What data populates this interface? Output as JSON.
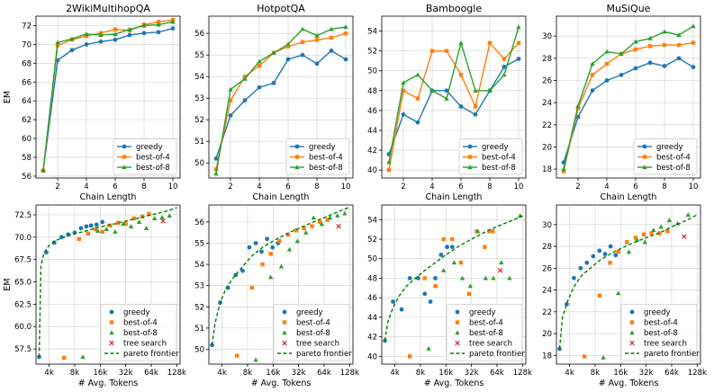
{
  "colors": {
    "greedy": "#1f77b4",
    "best4": "#ff7f0e",
    "best8": "#2ca02c",
    "tree": "#d62728",
    "pareto": "#008000"
  },
  "chart_data": [
    {
      "type": "line",
      "title": "2WikiMultihopQA",
      "xlabel": "Chain Length",
      "ylabel": "EM",
      "xlim": [
        0.5,
        10.5
      ],
      "ylim": [
        55.8,
        73.0
      ],
      "xticks": [
        2,
        4,
        6,
        8,
        10
      ],
      "yticks": [
        56,
        58,
        60,
        62,
        64,
        66,
        68,
        70,
        72
      ],
      "legend": "lower-right",
      "grid": true,
      "x": [
        1,
        2,
        3,
        4,
        5,
        6,
        7,
        8,
        9,
        10
      ],
      "series": [
        {
          "name": "greedy",
          "values": [
            56.6,
            68.3,
            69.4,
            70.0,
            70.3,
            70.5,
            71.0,
            71.2,
            71.3,
            71.7
          ]
        },
        {
          "name": "best-of-4",
          "values": [
            56.6,
            69.9,
            70.5,
            70.9,
            71.2,
            71.6,
            71.5,
            72.1,
            72.4,
            72.6
          ]
        },
        {
          "name": "best-of-8",
          "values": [
            56.6,
            70.2,
            70.6,
            71.1,
            71.0,
            71.1,
            71.6,
            72.0,
            72.1,
            72.4
          ]
        }
      ]
    },
    {
      "type": "line",
      "title": "HotpotQA",
      "xlabel": "Chain Length",
      "ylabel": "",
      "xlim": [
        0.5,
        10.5
      ],
      "ylim": [
        49.3,
        56.8
      ],
      "xticks": [
        2,
        4,
        6,
        8,
        10
      ],
      "yticks": [
        50,
        51,
        52,
        53,
        54,
        55,
        56
      ],
      "legend": "lower-right",
      "grid": true,
      "x": [
        1,
        2,
        3,
        4,
        5,
        6,
        7,
        8,
        9,
        10
      ],
      "series": [
        {
          "name": "greedy",
          "values": [
            50.2,
            52.2,
            52.9,
            53.5,
            53.7,
            54.8,
            55.0,
            54.6,
            55.2,
            54.8
          ]
        },
        {
          "name": "best-of-4",
          "values": [
            49.7,
            52.9,
            54.0,
            54.5,
            55.1,
            55.4,
            55.6,
            55.7,
            55.8,
            56.0
          ]
        },
        {
          "name": "best-of-8",
          "values": [
            49.5,
            53.4,
            53.9,
            54.7,
            55.1,
            55.5,
            56.2,
            55.9,
            56.2,
            56.3
          ]
        }
      ]
    },
    {
      "type": "line",
      "title": "Bamboogle",
      "xlabel": "Chain Length",
      "ylabel": "",
      "xlim": [
        0.5,
        10.5
      ],
      "ylim": [
        39.2,
        55.5
      ],
      "xticks": [
        2,
        4,
        6,
        8,
        10
      ],
      "yticks": [
        40,
        42,
        44,
        46,
        48,
        50,
        52,
        54
      ],
      "legend": "lower-right",
      "grid": true,
      "x": [
        1,
        2,
        3,
        4,
        5,
        6,
        7,
        8,
        9,
        10
      ],
      "series": [
        {
          "name": "greedy",
          "values": [
            41.6,
            45.6,
            44.8,
            48.0,
            48.0,
            46.4,
            45.6,
            48.0,
            50.4,
            51.2
          ]
        },
        {
          "name": "best-of-4",
          "values": [
            40.0,
            48.0,
            47.2,
            52.0,
            52.0,
            49.6,
            46.4,
            52.8,
            51.2,
            52.8
          ]
        },
        {
          "name": "best-of-8",
          "values": [
            40.8,
            48.8,
            49.6,
            48.0,
            47.2,
            52.8,
            48.0,
            48.0,
            49.6,
            54.4
          ]
        }
      ]
    },
    {
      "type": "line",
      "title": "MuSiQue",
      "xlabel": "Chain Length",
      "ylabel": "",
      "xlim": [
        0.5,
        10.5
      ],
      "ylim": [
        17.2,
        31.8
      ],
      "xticks": [
        2,
        4,
        6,
        8,
        10
      ],
      "yticks": [
        18,
        20,
        22,
        24,
        26,
        28,
        30
      ],
      "legend": "lower-right",
      "grid": true,
      "x": [
        1,
        2,
        3,
        4,
        5,
        6,
        7,
        8,
        9,
        10
      ],
      "series": [
        {
          "name": "greedy",
          "values": [
            18.6,
            22.7,
            25.1,
            26.0,
            26.5,
            27.1,
            27.6,
            27.3,
            28.0,
            27.2
          ]
        },
        {
          "name": "best-of-4",
          "values": [
            17.8,
            23.5,
            26.5,
            27.5,
            28.4,
            28.8,
            29.1,
            29.2,
            29.2,
            29.4
          ]
        },
        {
          "name": "best-of-8",
          "values": [
            18.0,
            23.7,
            27.5,
            28.6,
            28.4,
            29.5,
            29.8,
            30.4,
            30.1,
            30.9
          ]
        }
      ]
    },
    {
      "type": "scatter",
      "xlabel": "# Avg. Tokens",
      "ylabel": "EM",
      "xscale": "log2",
      "xlim": [
        2800,
        140000
      ],
      "ylim": [
        55.8,
        73.6
      ],
      "xticks": [
        4000,
        8000,
        16000,
        32000,
        64000,
        128000
      ],
      "xticklabels": [
        "4k",
        "8k",
        "16k",
        "32k",
        "64k",
        "128k"
      ],
      "yticks": [
        57.5,
        60.0,
        62.5,
        65.0,
        67.5,
        70.0,
        72.5
      ],
      "yticklabels": [
        "57.5",
        "60.0",
        "62.5",
        "65.0",
        "67.5",
        "70.0",
        "72.5"
      ],
      "legend": "lower-right",
      "grid": true,
      "series": [
        {
          "name": "greedy",
          "x": [
            3050,
            3700,
            4600,
            5600,
            6700,
            8000,
            9500,
            11000,
            12500,
            14500,
            17000
          ],
          "y": [
            56.6,
            68.3,
            69.4,
            70.0,
            70.3,
            70.5,
            71.0,
            71.2,
            71.3,
            71.4,
            71.7
          ]
        },
        {
          "name": "best-of-4",
          "x": [
            6000,
            9000,
            11500,
            14000,
            17000,
            21000,
            26000,
            32000,
            40000,
            50000,
            60000
          ],
          "y": [
            56.5,
            69.8,
            70.4,
            70.9,
            70.6,
            71.3,
            71.6,
            71.5,
            72.1,
            72.3,
            72.6
          ]
        },
        {
          "name": "best-of-8",
          "x": [
            10000,
            15000,
            19000,
            24000,
            30000,
            37000,
            46000,
            56000,
            70000,
            86000,
            105000
          ],
          "y": [
            56.6,
            70.7,
            70.9,
            70.6,
            71.5,
            71.2,
            71.7,
            71.0,
            72.1,
            72.2,
            72.4
          ]
        },
        {
          "name": "tree search",
          "x": [
            88000
          ],
          "y": [
            71.8
          ]
        },
        {
          "name": "pareto frontier",
          "style": "dashed",
          "x": [
            3050,
            3200,
            3500,
            4000,
            5000,
            6000,
            8000,
            10000,
            14000,
            17000,
            24000,
            32000,
            48000,
            64000,
            96000,
            128000
          ],
          "y": [
            56.6,
            66.8,
            68.3,
            69.1,
            69.7,
            70.0,
            70.4,
            70.6,
            71.0,
            71.2,
            71.5,
            71.8,
            72.2,
            72.5,
            72.9,
            73.3
          ]
        }
      ]
    },
    {
      "type": "scatter",
      "xlabel": "# Avg. Tokens",
      "ylabel": "",
      "xscale": "log2",
      "xlim": [
        2800,
        140000
      ],
      "ylim": [
        49.3,
        56.8
      ],
      "xticks": [
        4000,
        8000,
        16000,
        32000,
        64000,
        128000
      ],
      "xticklabels": [
        "4k",
        "8k",
        "16k",
        "32k",
        "64k",
        "128k"
      ],
      "yticks": [
        50,
        51,
        52,
        53,
        54,
        55,
        56
      ],
      "legend": "lower-right",
      "grid": true,
      "series": [
        {
          "name": "greedy",
          "x": [
            3050,
            3800,
            4700,
            5800,
            7000,
            8400,
            10000,
            11700,
            13600,
            15800,
            18300
          ],
          "y": [
            50.2,
            52.2,
            52.9,
            53.5,
            53.7,
            54.8,
            55.0,
            54.6,
            55.2,
            54.8,
            55.0
          ]
        },
        {
          "name": "best-of-4",
          "x": [
            6000,
            9000,
            12000,
            15000,
            19000,
            24000,
            30000,
            37000,
            46000,
            57000,
            70000
          ],
          "y": [
            49.7,
            52.9,
            54.0,
            54.5,
            55.1,
            55.4,
            55.6,
            55.7,
            55.8,
            56.0,
            56.1
          ]
        },
        {
          "name": "best-of-8",
          "x": [
            10000,
            15000,
            20000,
            25000,
            31000,
            39000,
            48000,
            60000,
            75000,
            92000,
            112000
          ],
          "y": [
            49.5,
            53.4,
            53.9,
            54.7,
            55.1,
            55.5,
            56.2,
            55.9,
            56.2,
            56.3,
            56.4
          ]
        },
        {
          "name": "tree search",
          "x": [
            95000
          ],
          "y": [
            55.8
          ]
        },
        {
          "name": "pareto frontier",
          "style": "dashed",
          "x": [
            3050,
            3300,
            3800,
            4500,
            5500,
            7000,
            9000,
            12000,
            16000,
            22000,
            32000,
            48000,
            64000,
            96000,
            128000
          ],
          "y": [
            50.2,
            51.2,
            52.2,
            52.9,
            53.4,
            53.9,
            54.4,
            54.8,
            55.1,
            55.4,
            55.7,
            56.0,
            56.2,
            56.5,
            56.7
          ]
        }
      ]
    },
    {
      "type": "scatter",
      "xlabel": "# Avg. Tokens",
      "ylabel": "",
      "xscale": "log2",
      "xlim": [
        2800,
        140000
      ],
      "ylim": [
        39.2,
        55.5
      ],
      "xticks": [
        4000,
        8000,
        16000,
        32000,
        64000,
        128000
      ],
      "xticklabels": [
        "4k",
        "8k",
        "16k",
        "32k",
        "64k",
        "128k"
      ],
      "yticks": [
        40,
        42,
        44,
        46,
        48,
        50,
        52,
        54
      ],
      "legend": "lower-right",
      "grid": true,
      "series": [
        {
          "name": "greedy",
          "x": [
            3050,
            3800,
            4800,
            6000,
            7500,
            9000,
            10500,
            12000,
            14000,
            16500,
            19000
          ],
          "y": [
            41.6,
            45.6,
            44.8,
            48.0,
            48.0,
            46.4,
            45.6,
            48.0,
            50.4,
            51.2,
            51.2
          ]
        },
        {
          "name": "best-of-4",
          "x": [
            6000,
            9000,
            12000,
            15000,
            19000,
            24000,
            30000,
            37000,
            46000,
            52000,
            57000
          ],
          "y": [
            40.0,
            48.0,
            47.2,
            52.0,
            52.0,
            49.6,
            46.4,
            52.8,
            51.2,
            52.8,
            52.8
          ]
        },
        {
          "name": "best-of-8",
          "x": [
            10000,
            15000,
            20000,
            25000,
            31000,
            38000,
            47000,
            58000,
            72000,
            90000,
            120000
          ],
          "y": [
            40.8,
            48.8,
            49.6,
            48.0,
            47.2,
            52.8,
            48.0,
            48.0,
            49.6,
            48.0,
            54.4
          ]
        },
        {
          "name": "tree search",
          "x": [
            70000
          ],
          "y": [
            48.8
          ]
        },
        {
          "name": "pareto frontier",
          "style": "dashed",
          "x": [
            3050,
            3300,
            3800,
            4500,
            5500,
            7000,
            9000,
            12000,
            16000,
            22000,
            32000,
            48000,
            64000,
            96000,
            128000
          ],
          "y": [
            41.6,
            43.5,
            45.0,
            46.2,
            47.2,
            48.0,
            48.8,
            49.6,
            50.4,
            51.2,
            52.0,
            52.8,
            53.3,
            53.9,
            54.4
          ]
        }
      ]
    },
    {
      "type": "scatter",
      "xlabel": "# Avg. Tokens",
      "ylabel": "",
      "xscale": "log2",
      "xlim": [
        2800,
        140000
      ],
      "ylim": [
        17.2,
        31.8
      ],
      "xticks": [
        4000,
        8000,
        16000,
        32000,
        64000,
        128000
      ],
      "xticklabels": [
        "4k",
        "8k",
        "16k",
        "32k",
        "64k",
        "128k"
      ],
      "yticks": [
        18,
        20,
        22,
        24,
        26,
        28,
        30
      ],
      "legend": "lower-right",
      "grid": true,
      "series": [
        {
          "name": "greedy",
          "x": [
            3050,
            3700,
            4500,
            5400,
            6400,
            7600,
            9000,
            10500,
            12200,
            14000
          ],
          "y": [
            18.6,
            22.7,
            25.1,
            26.0,
            26.5,
            27.1,
            27.6,
            27.3,
            28.0,
            27.2
          ]
        },
        {
          "name": "best-of-4",
          "x": [
            6000,
            9000,
            12000,
            15000,
            19000,
            24000,
            30000,
            37000,
            46000,
            57000
          ],
          "y": [
            17.9,
            23.5,
            26.5,
            27.5,
            28.4,
            28.8,
            29.1,
            29.2,
            29.2,
            29.4
          ]
        },
        {
          "name": "best-of-8",
          "x": [
            10000,
            15000,
            20000,
            25000,
            31000,
            39000,
            48000,
            60000,
            75000,
            100000
          ],
          "y": [
            17.8,
            23.7,
            27.5,
            28.6,
            28.4,
            29.5,
            29.8,
            30.4,
            30.1,
            30.9
          ]
        },
        {
          "name": "tree search",
          "x": [
            90000
          ],
          "y": [
            28.9
          ]
        },
        {
          "name": "pareto frontier",
          "style": "dashed",
          "x": [
            3050,
            3300,
            3800,
            4500,
            5500,
            7000,
            9000,
            12000,
            16000,
            22000,
            32000,
            48000,
            64000,
            96000,
            128000
          ],
          "y": [
            18.6,
            21.5,
            23.0,
            24.3,
            25.3,
            26.0,
            26.7,
            27.3,
            27.8,
            28.3,
            28.8,
            29.3,
            29.8,
            30.4,
            30.9
          ]
        }
      ]
    }
  ]
}
